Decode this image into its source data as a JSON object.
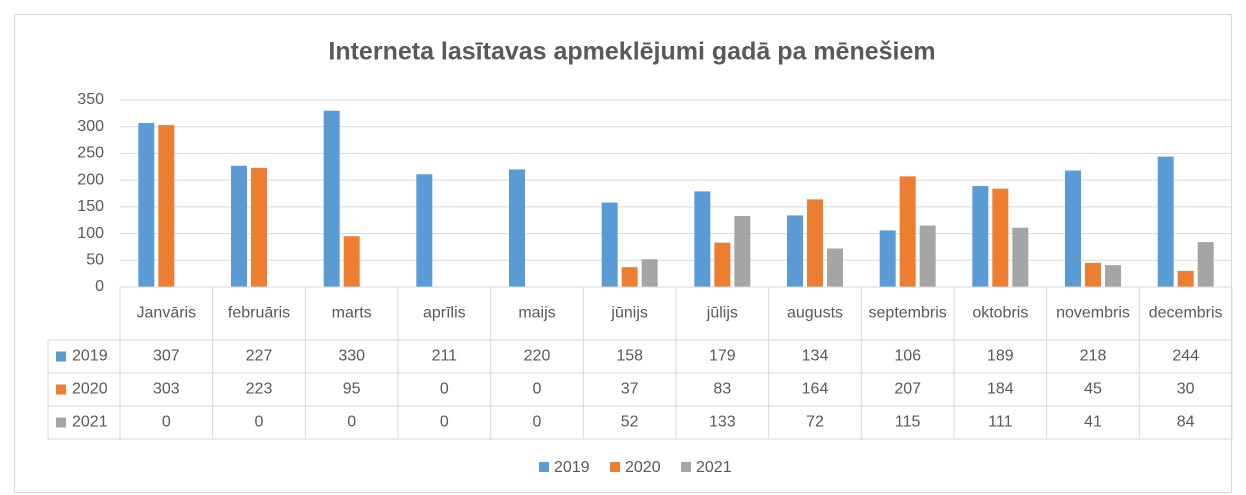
{
  "chart_data": {
    "type": "bar",
    "title": "Interneta lasītavas apmeklējumi gadā pa mēnešiem",
    "categories": [
      "Janvāris",
      "februāris",
      "marts",
      "aprīlis",
      "maijs",
      "jūnijs",
      "jūlijs",
      "augusts",
      "septembris",
      "oktobris",
      "novembris",
      "decembris"
    ],
    "series": [
      {
        "name": "2019",
        "color": "#5b9bd5",
        "values": [
          307,
          227,
          330,
          211,
          220,
          158,
          179,
          134,
          106,
          189,
          218,
          244
        ]
      },
      {
        "name": "2020",
        "color": "#ed7d31",
        "values": [
          303,
          223,
          95,
          0,
          0,
          37,
          83,
          164,
          207,
          184,
          45,
          30
        ]
      },
      {
        "name": "2021",
        "color": "#a5a5a5",
        "values": [
          0,
          0,
          0,
          0,
          0,
          52,
          133,
          72,
          115,
          111,
          41,
          84
        ]
      }
    ],
    "ylim": [
      0,
      350
    ],
    "yticks": [
      0,
      50,
      100,
      150,
      200,
      250,
      300,
      350
    ],
    "grid": true,
    "legend": "bottom",
    "data_table": true
  }
}
